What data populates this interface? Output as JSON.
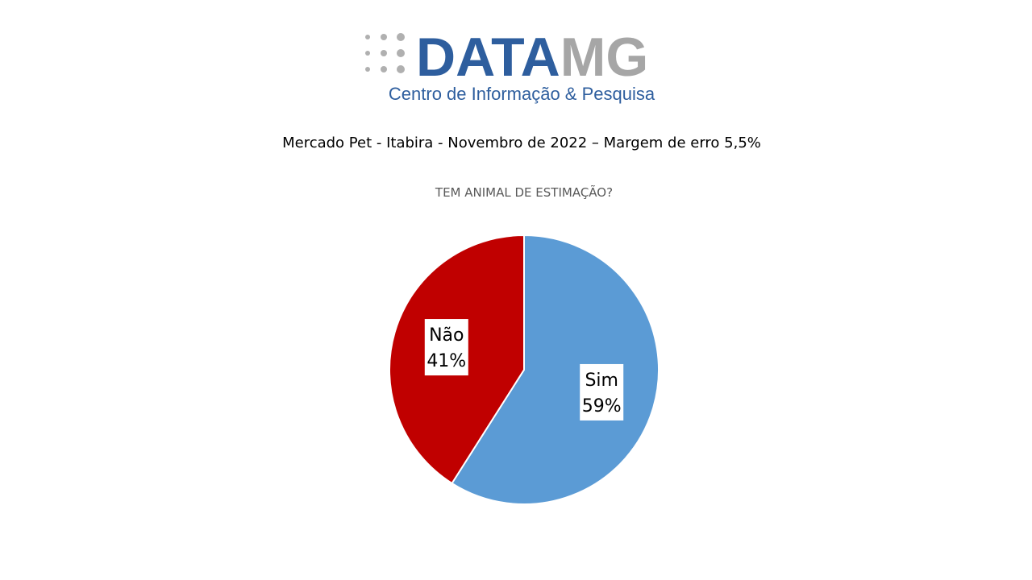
{
  "logo": {
    "brand_a": "DATA",
    "brand_b": "MG",
    "tagline": "Centro de Informação & Pesquisa"
  },
  "subtitle": "Mercado Pet - Itabira - Novembro de 2022 – Margem de erro 5,5%",
  "chart_data": {
    "type": "pie",
    "title": "TEM ANIMAL DE ESTIMAÇÃO?",
    "categories": [
      "Sim",
      "Não"
    ],
    "values": [
      59,
      41
    ],
    "value_labels": [
      "59%",
      "41%"
    ],
    "colors": [
      "#5b9bd5",
      "#c00000"
    ]
  }
}
